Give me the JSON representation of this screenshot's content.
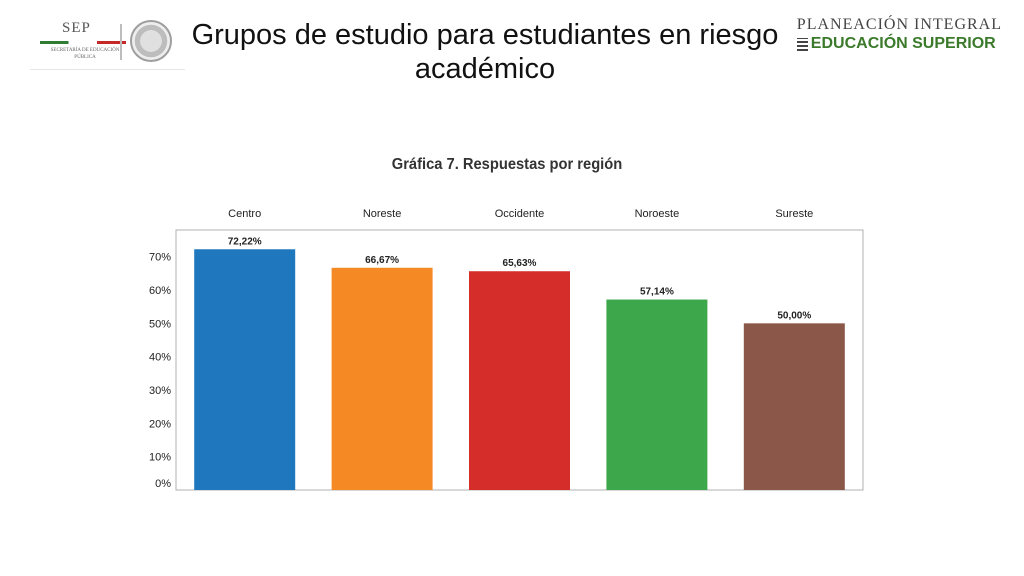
{
  "header": {
    "title": "Grupos de estudio para estudiantes en riesgo académico",
    "brand_line1": "PLANEACIÓN INTEGRAL",
    "brand_line2": "EDUCACIÓN SUPERIOR",
    "sep_word": "SEP",
    "sep_subtitle": "SECRETARÍA DE EDUCACIÓN PÚBLICA"
  },
  "chart_data": {
    "type": "bar",
    "title": "Gráfica 7. Respuestas por región",
    "categories": [
      "Centro",
      "Noreste",
      "Occidente",
      "Noroeste",
      "Sureste"
    ],
    "values": [
      72.22,
      66.67,
      65.63,
      57.14,
      50.0
    ],
    "value_labels": [
      "72,22%",
      "66,67%",
      "65,63%",
      "57,14%",
      "50,00%"
    ],
    "colors": [
      "#1f77bd",
      "#f58a24",
      "#d42d2a",
      "#3da84b",
      "#8b5749"
    ],
    "ylim": [
      0,
      78
    ],
    "yticks": [
      0,
      10,
      20,
      30,
      40,
      50,
      60,
      70
    ],
    "ytick_labels": [
      "0%",
      "10%",
      "20%",
      "30%",
      "40%",
      "50%",
      "60%",
      "70%"
    ],
    "category_labels_position": "top",
    "grid": false,
    "legend": "none"
  }
}
